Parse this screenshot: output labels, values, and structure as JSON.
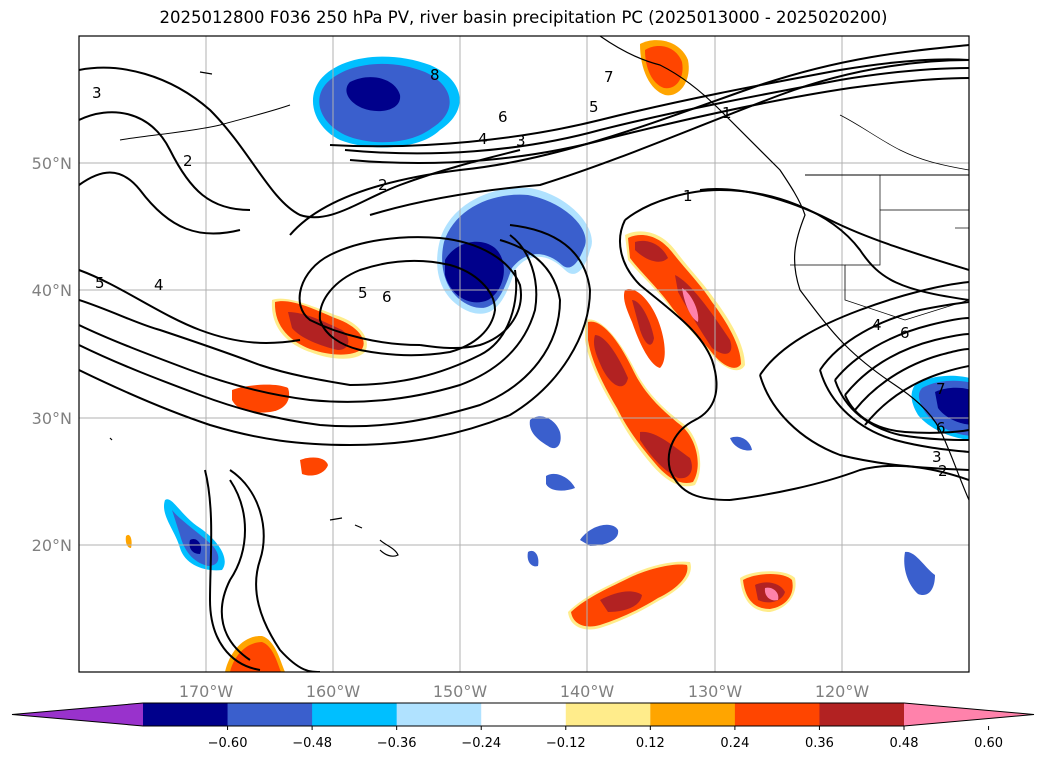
{
  "title": "2025012800 F036 250 hPa PV, river basin precipitation PC (2025013000 - 2025020200)",
  "map": {
    "lat_labels": [
      "50°N",
      "40°N",
      "30°N",
      "20°N"
    ],
    "lon_labels": [
      "170°W",
      "160°W",
      "150°W",
      "140°W",
      "130°W",
      "120°W"
    ],
    "lat_range": [
      10,
      60
    ],
    "lon_range": [
      -180,
      -110
    ]
  },
  "pv_contour_labels": [
    "1",
    "2",
    "3",
    "4",
    "5",
    "6",
    "7",
    "8"
  ],
  "colorbar": {
    "ticks": [
      "−0.60",
      "−0.48",
      "−0.36",
      "−0.24",
      "−0.12",
      "0.12",
      "0.24",
      "0.36",
      "0.48",
      "0.60"
    ],
    "colors": [
      "#9932cc",
      "#00008b",
      "#3a5fcd",
      "#00bfff",
      "#b0e2ff",
      "#ffffff",
      "#ffec8b",
      "#ffa500",
      "#ff4500",
      "#b22222",
      "#ff82ab"
    ]
  }
}
